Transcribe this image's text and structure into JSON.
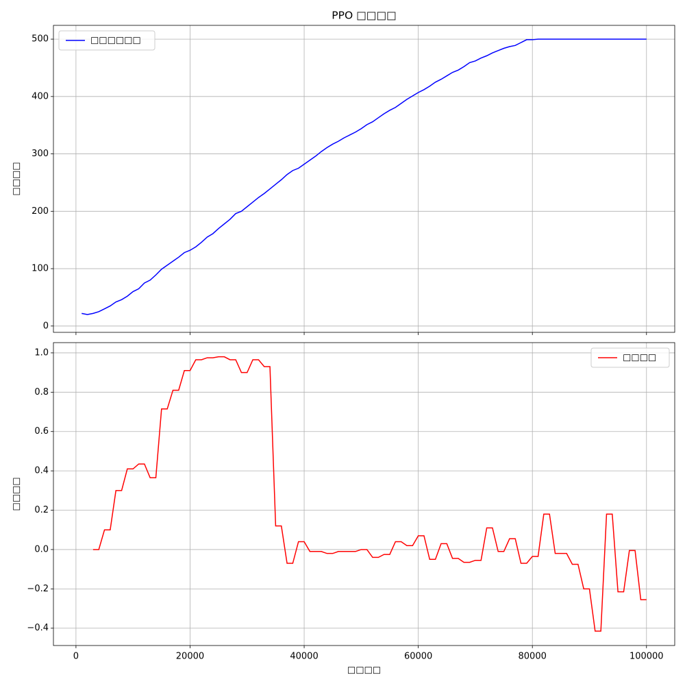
{
  "chart_data": [
    {
      "type": "line",
      "title": "PPO □□□□",
      "ylabel": "□□□□",
      "legend": "upper left",
      "grid": true,
      "x": [
        1000,
        2000,
        3000,
        4000,
        5000,
        6000,
        7000,
        8000,
        9000,
        10000,
        11000,
        12000,
        13000,
        14000,
        15000,
        16000,
        17000,
        18000,
        19000,
        20000,
        21000,
        22000,
        23000,
        24000,
        25000,
        26000,
        27000,
        28000,
        29000,
        30000,
        31000,
        32000,
        33000,
        34000,
        35000,
        36000,
        37000,
        38000,
        39000,
        40000,
        41000,
        42000,
        43000,
        44000,
        45000,
        46000,
        47000,
        48000,
        49000,
        50000,
        51000,
        52000,
        53000,
        54000,
        55000,
        56000,
        57000,
        58000,
        59000,
        60000,
        61000,
        62000,
        63000,
        64000,
        65000,
        66000,
        67000,
        68000,
        69000,
        70000,
        71000,
        72000,
        73000,
        74000,
        75000,
        76000,
        77000,
        78000,
        79000,
        80000,
        81000,
        82000,
        83000,
        84000,
        85000,
        86000,
        87000,
        88000,
        89000,
        90000,
        91000,
        92000,
        93000,
        94000,
        95000,
        96000,
        97000,
        98000,
        99000,
        100000
      ],
      "series": [
        {
          "name": "□□□□□□",
          "color": "#0000ff",
          "values": [
            22,
            20,
            22,
            25,
            30,
            35,
            42,
            46,
            52,
            60,
            65,
            75,
            80,
            89,
            99,
            106,
            113,
            120,
            128,
            132,
            138,
            146,
            155,
            161,
            170,
            178,
            186,
            196,
            200,
            208,
            216,
            224,
            231,
            239,
            247,
            255,
            264,
            271,
            275,
            282,
            289,
            296,
            304,
            311,
            317,
            322,
            328,
            333,
            338,
            344,
            351,
            356,
            363,
            370,
            376,
            381,
            388,
            395,
            401,
            407,
            412,
            418,
            425,
            430,
            436,
            442,
            446,
            452,
            459,
            462,
            467,
            471,
            476,
            480,
            484,
            487,
            489,
            494,
            499,
            499,
            500,
            500,
            500,
            500,
            500,
            500,
            500,
            500,
            500,
            500,
            500,
            500,
            500,
            500,
            500,
            500,
            500,
            500,
            500,
            500
          ]
        }
      ],
      "xlim": [
        -3950,
        104950
      ],
      "xticks": [
        0,
        20000,
        40000,
        60000,
        80000,
        100000
      ],
      "ylim": [
        -11,
        524
      ],
      "yticks": [
        0,
        100,
        200,
        300,
        400,
        500
      ]
    },
    {
      "type": "line",
      "xlabel": "□□□□",
      "ylabel": "□□□□",
      "legend": "upper right",
      "grid": true,
      "x": [
        3000,
        4000,
        5000,
        6000,
        7000,
        8000,
        9000,
        10000,
        11000,
        12000,
        13000,
        14000,
        15000,
        16000,
        17000,
        18000,
        19000,
        20000,
        21000,
        22000,
        23000,
        24000,
        25000,
        26000,
        27000,
        28000,
        29000,
        30000,
        31000,
        32000,
        33000,
        34000,
        35000,
        36000,
        37000,
        38000,
        39000,
        40000,
        41000,
        42000,
        43000,
        44000,
        45000,
        46000,
        47000,
        48000,
        49000,
        50000,
        51000,
        52000,
        53000,
        54000,
        55000,
        56000,
        57000,
        58000,
        59000,
        60000,
        61000,
        62000,
        63000,
        64000,
        65000,
        66000,
        67000,
        68000,
        69000,
        70000,
        71000,
        72000,
        73000,
        74000,
        75000,
        76000,
        77000,
        78000,
        79000,
        80000,
        81000,
        82000,
        83000,
        84000,
        85000,
        86000,
        87000,
        88000,
        89000,
        90000,
        91000,
        92000,
        93000,
        94000,
        95000,
        96000,
        97000,
        98000,
        99000,
        100000
      ],
      "series": [
        {
          "name": "□□□□",
          "color": "#ff0000",
          "values": [
            0.0,
            0.0,
            0.1,
            0.1,
            0.3,
            0.3,
            0.41,
            0.41,
            0.435,
            0.435,
            0.365,
            0.365,
            0.715,
            0.715,
            0.81,
            0.81,
            0.91,
            0.91,
            0.965,
            0.965,
            0.975,
            0.975,
            0.98,
            0.98,
            0.965,
            0.965,
            0.9,
            0.9,
            0.965,
            0.965,
            0.93,
            0.93,
            0.12,
            0.12,
            -0.07,
            -0.07,
            0.04,
            0.04,
            -0.01,
            -0.01,
            -0.01,
            -0.02,
            -0.02,
            -0.01,
            -0.01,
            -0.01,
            -0.01,
            0.0,
            0.0,
            -0.04,
            -0.04,
            -0.025,
            -0.025,
            0.04,
            0.04,
            0.02,
            0.02,
            0.07,
            0.07,
            -0.05,
            -0.05,
            0.03,
            0.03,
            -0.045,
            -0.045,
            -0.065,
            -0.065,
            -0.055,
            -0.055,
            0.11,
            0.11,
            -0.01,
            -0.01,
            0.055,
            0.055,
            -0.07,
            -0.07,
            -0.035,
            -0.035,
            0.18,
            0.18,
            -0.02,
            -0.02,
            -0.02,
            -0.075,
            -0.075,
            -0.2,
            -0.2,
            -0.415,
            -0.415,
            0.18,
            0.18,
            -0.215,
            -0.215,
            -0.005,
            -0.005,
            -0.255,
            -0.255
          ]
        }
      ],
      "xlim": [
        -3950,
        104950
      ],
      "xticks": [
        0,
        20000,
        40000,
        60000,
        80000,
        100000
      ],
      "ylim": [
        -0.488,
        1.052
      ],
      "yticks": [
        {
          "value": -0.4,
          "label": "−0.4"
        },
        {
          "value": -0.2,
          "label": "−0.2"
        },
        {
          "value": 0,
          "label": "0.0"
        },
        {
          "value": 0.2,
          "label": "0.2"
        },
        {
          "value": 0.4,
          "label": "0.4"
        },
        {
          "value": 0.6,
          "label": "0.6"
        },
        {
          "value": 0.8,
          "label": "0.8"
        },
        {
          "value": 1,
          "label": "1.0"
        }
      ]
    }
  ]
}
